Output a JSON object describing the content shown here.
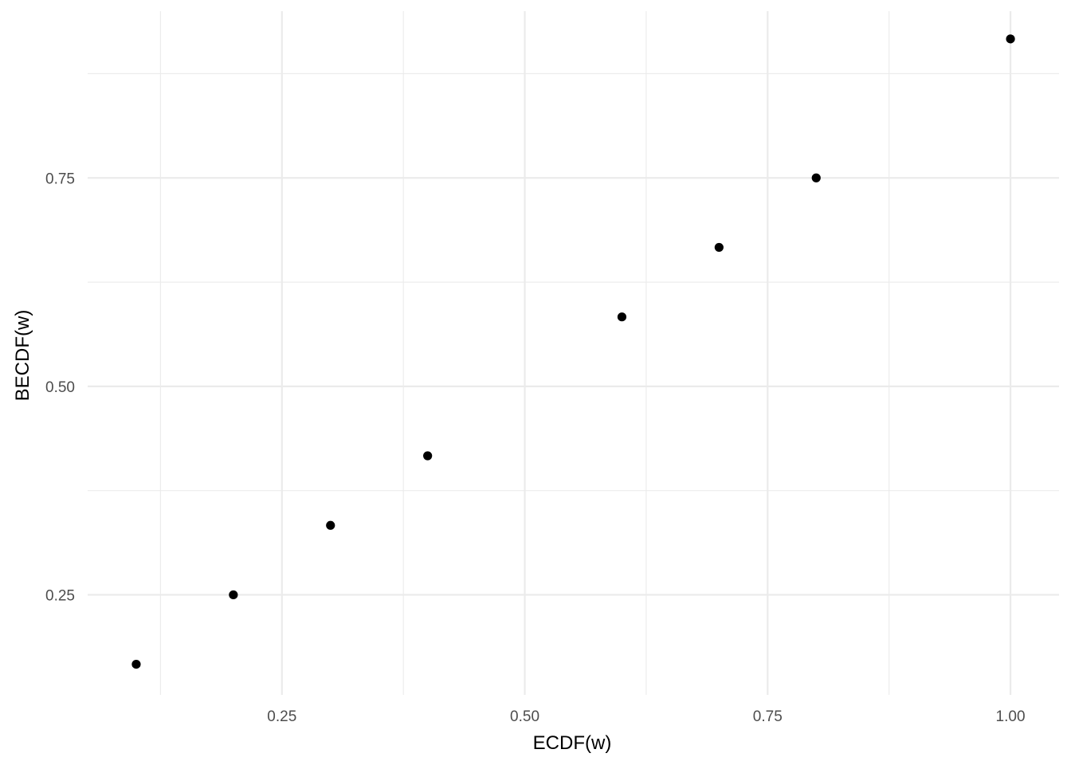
{
  "chart_data": {
    "type": "scatter",
    "title": "",
    "xlabel": "ECDF(w)",
    "ylabel": "BECDF(w)",
    "xlim": [
      0.05,
      1.05
    ],
    "ylim": [
      0.13,
      0.95
    ],
    "x_ticks": [
      0.25,
      0.5,
      0.75,
      1.0
    ],
    "x_tick_labels": [
      "0.25",
      "0.50",
      "0.75",
      "1.00"
    ],
    "x_minor_ticks": [
      0.125,
      0.375,
      0.625,
      0.875
    ],
    "y_ticks": [
      0.25,
      0.5,
      0.75
    ],
    "y_tick_labels": [
      "0.25",
      "0.50",
      "0.75"
    ],
    "y_minor_ticks": [
      0.375,
      0.625,
      0.875
    ],
    "grid": true,
    "legend": "none",
    "point_color": "#000000",
    "grid_color": "#ebebeb",
    "points": [
      {
        "x": 0.1,
        "y": 0.1667
      },
      {
        "x": 0.2,
        "y": 0.25
      },
      {
        "x": 0.3,
        "y": 0.3333
      },
      {
        "x": 0.4,
        "y": 0.4167
      },
      {
        "x": 0.6,
        "y": 0.5833
      },
      {
        "x": 0.7,
        "y": 0.6667
      },
      {
        "x": 0.8,
        "y": 0.75
      },
      {
        "x": 1.0,
        "y": 0.9167
      }
    ]
  }
}
